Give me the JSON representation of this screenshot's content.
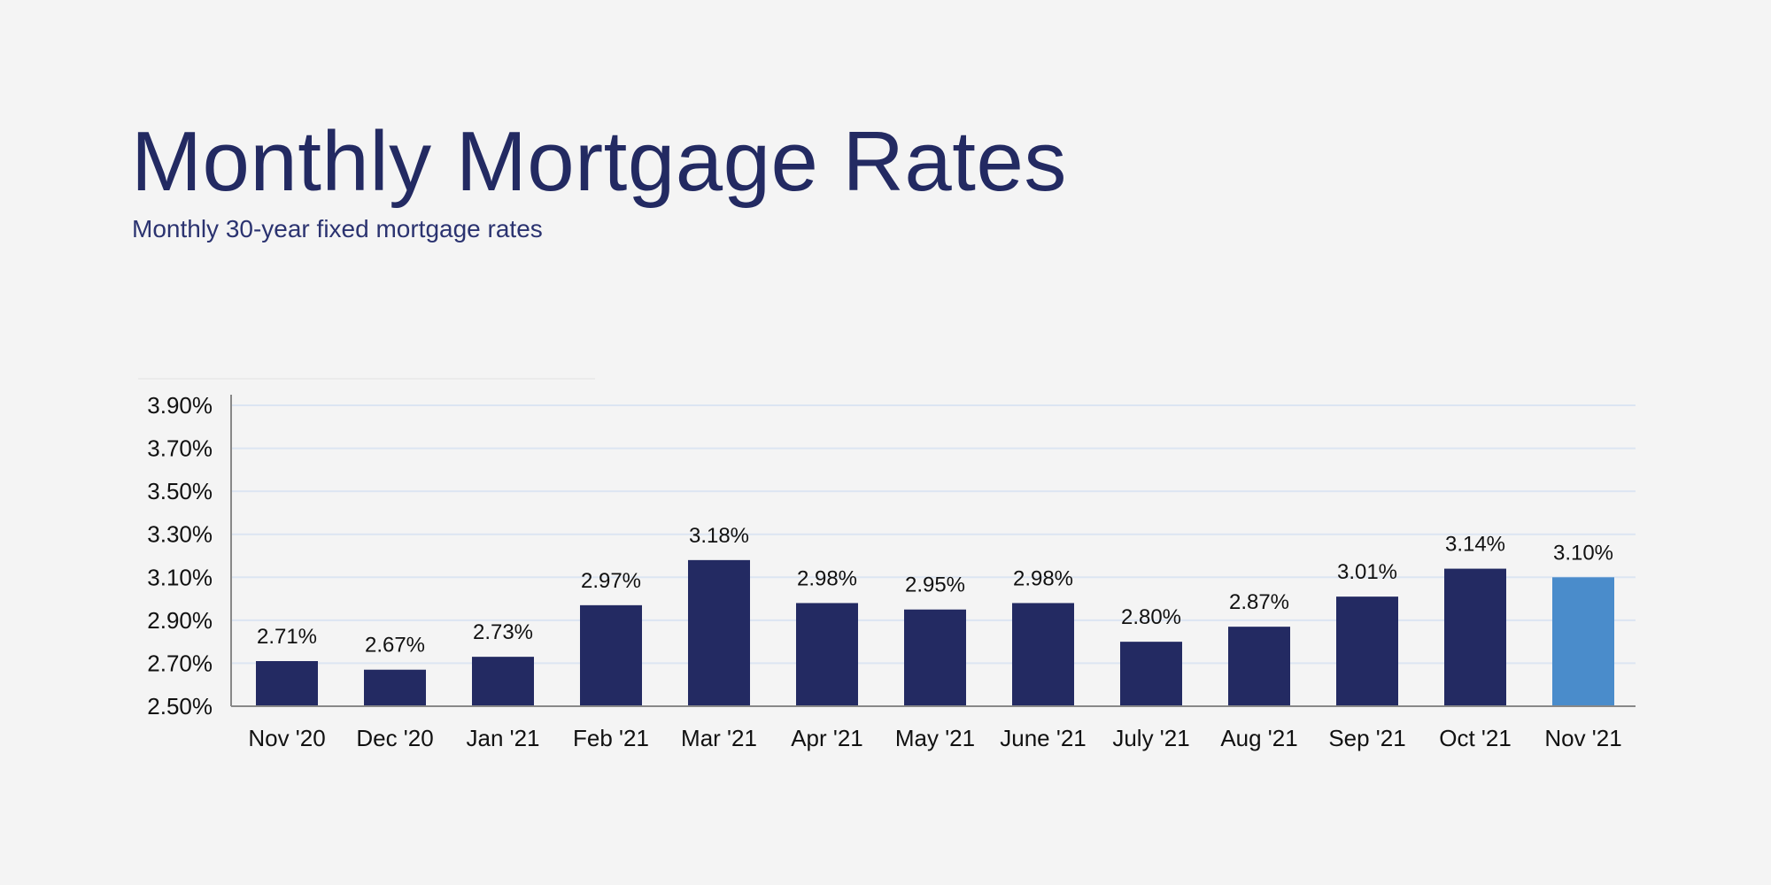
{
  "header": {
    "title": "Monthly Mortgage Rates",
    "subtitle": "Monthly 30-year fixed mortgage rates"
  },
  "colors": {
    "background": "#f4f4f4",
    "bar": "#232a62",
    "highlight_bar": "#4a8ccb",
    "title": "#232a62",
    "grid": "#dce5f2"
  },
  "chart_data": {
    "type": "bar",
    "title": "Monthly Mortgage Rates",
    "subtitle": "Monthly 30-year fixed mortgage rates",
    "xlabel": "",
    "ylabel": "",
    "categories": [
      "Nov '20",
      "Dec '20",
      "Jan '21",
      "Feb '21",
      "Mar '21",
      "Apr '21",
      "May '21",
      "June '21",
      "July '21",
      "Aug '21",
      "Sep '21",
      "Oct '21",
      "Nov '21"
    ],
    "values": [
      2.71,
      2.67,
      2.73,
      2.97,
      3.18,
      2.98,
      2.95,
      2.98,
      2.8,
      2.87,
      3.01,
      3.14,
      3.1
    ],
    "data_labels": [
      "2.71%",
      "2.67%",
      "2.73%",
      "2.97%",
      "3.18%",
      "2.98%",
      "2.95%",
      "2.98%",
      "2.80%",
      "2.87%",
      "3.01%",
      "3.14%",
      "3.10%"
    ],
    "highlighted_index": 12,
    "ylim": [
      2.5,
      3.9
    ],
    "yticks": [
      2.5,
      2.7,
      2.9,
      3.1,
      3.3,
      3.5,
      3.7,
      3.9
    ],
    "ytick_labels": [
      "2.50%",
      "2.70%",
      "2.90%",
      "3.10%",
      "3.30%",
      "3.50%",
      "3.70%",
      "3.90%"
    ],
    "grid": true,
    "legend": "none"
  }
}
